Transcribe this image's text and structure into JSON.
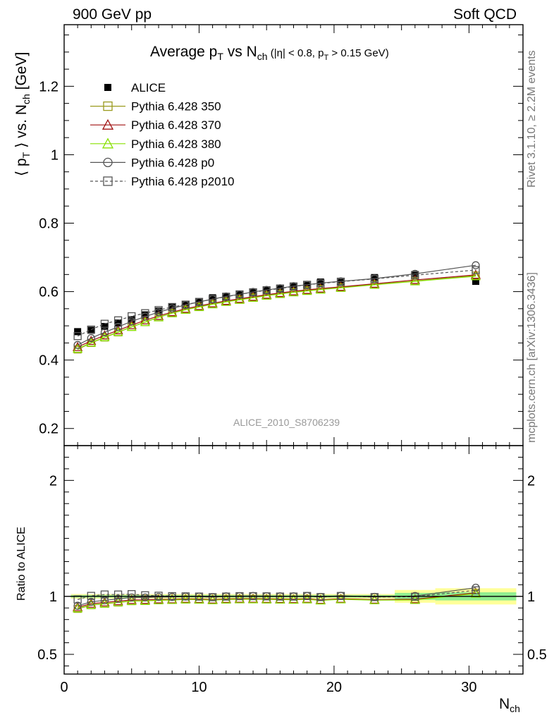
{
  "header": {
    "left": "900 GeV pp",
    "right": "Soft QCD"
  },
  "side": {
    "rivet": "Rivet 3.1.10, ≥ 2.2M events",
    "mcplots": "mcplots.cern.ch [arXiv:1306.3436]"
  },
  "chart_data": [
    {
      "type": "scatter",
      "title_parts": {
        "a": "Average p",
        "a_sub": "T",
        "b": " vs N",
        "b_sub": "ch",
        "c": " (|η| < 0.8, p",
        "c_sub": "T",
        "d": " > 0.15 GeV)"
      },
      "ylabel_parts": {
        "a": "⟨ p",
        "a_sub": "T",
        "b": " ⟩ vs. N",
        "b_sub": "ch",
        "c": " [GeV]"
      },
      "watermark": "ALICE_2010_S8706239",
      "xlim": [
        0,
        34
      ],
      "ylim": [
        0.15,
        1.38
      ],
      "yticks": [
        "0.2",
        "0.4",
        "0.6",
        "0.8",
        "1",
        "1.2"
      ],
      "ytick_values": [
        0.2,
        0.4,
        0.6,
        0.8,
        1.0,
        1.2
      ],
      "legend_position": "top-left",
      "x": [
        1,
        2,
        3,
        4,
        5,
        6,
        7,
        8,
        9,
        10,
        11,
        12,
        13,
        14,
        15,
        16,
        17,
        18,
        19,
        20.5,
        23,
        26,
        30.5
      ],
      "series": [
        {
          "name": "ALICE",
          "color": "#000000",
          "marker": "filled-square",
          "line": "none",
          "values": [
            0.483,
            0.487,
            0.498,
            0.508,
            0.518,
            0.532,
            0.543,
            0.554,
            0.562,
            0.571,
            0.582,
            0.586,
            0.591,
            0.597,
            0.604,
            0.61,
            0.616,
            0.618,
            0.628,
            0.627,
            0.641,
            0.65,
            0.63
          ]
        },
        {
          "name": "Pythia 6.428 350",
          "color": "#9a9a1e",
          "marker": "open-square",
          "line": "solid",
          "values": [
            0.431,
            0.45,
            0.466,
            0.481,
            0.497,
            0.511,
            0.525,
            0.537,
            0.547,
            0.556,
            0.564,
            0.571,
            0.577,
            0.583,
            0.589,
            0.594,
            0.599,
            0.604,
            0.608,
            0.613,
            0.621,
            0.631,
            0.647
          ]
        },
        {
          "name": "Pythia 6.428 370",
          "color": "#a01010",
          "marker": "open-triangle",
          "line": "solid",
          "values": [
            0.438,
            0.456,
            0.472,
            0.487,
            0.502,
            0.516,
            0.529,
            0.54,
            0.55,
            0.558,
            0.566,
            0.573,
            0.579,
            0.585,
            0.591,
            0.596,
            0.601,
            0.605,
            0.609,
            0.614,
            0.623,
            0.634,
            0.649
          ]
        },
        {
          "name": "Pythia 6.428 380",
          "color": "#88e000",
          "marker": "open-triangle",
          "line": "solid",
          "values": [
            0.433,
            0.451,
            0.467,
            0.482,
            0.497,
            0.511,
            0.525,
            0.537,
            0.547,
            0.555,
            0.563,
            0.57,
            0.576,
            0.582,
            0.588,
            0.593,
            0.598,
            0.602,
            0.606,
            0.611,
            0.62,
            0.63,
            0.645
          ]
        },
        {
          "name": "Pythia 6.428 p0",
          "color": "#555555",
          "marker": "open-circle",
          "line": "solid",
          "values": [
            0.444,
            0.464,
            0.481,
            0.497,
            0.513,
            0.527,
            0.54,
            0.551,
            0.561,
            0.57,
            0.578,
            0.586,
            0.592,
            0.599,
            0.605,
            0.61,
            0.616,
            0.62,
            0.625,
            0.63,
            0.638,
            0.652,
            0.677
          ]
        },
        {
          "name": "Pythia 6.428 p2010",
          "color": "#555555",
          "marker": "open-square",
          "line": "dashed",
          "values": [
            0.47,
            0.489,
            0.506,
            0.516,
            0.528,
            0.537,
            0.546,
            0.555,
            0.562,
            0.57,
            0.578,
            0.585,
            0.592,
            0.598,
            0.604,
            0.609,
            0.615,
            0.62,
            0.624,
            0.629,
            0.637,
            0.648,
            0.663
          ]
        }
      ]
    },
    {
      "type": "line",
      "ylabel": "Ratio to ALICE",
      "xlabel_parts": {
        "a": "N",
        "a_sub": "ch"
      },
      "xlim": [
        0,
        34
      ],
      "ylim": [
        0.33,
        2.3
      ],
      "xticks": [
        "0",
        "10",
        "20",
        "30"
      ],
      "xtick_values": [
        0,
        10,
        20,
        30
      ],
      "yticks": [
        "0.5",
        "1",
        "2"
      ],
      "ytick_values": [
        0.5,
        1.0,
        2.0
      ],
      "bands": [
        {
          "xmin": 0.5,
          "xmax": 24.5,
          "inner": 0.01,
          "outer": 0.02
        },
        {
          "xmin": 24.5,
          "xmax": 27.5,
          "inner": 0.03,
          "outer": 0.055
        },
        {
          "xmin": 27.5,
          "xmax": 33.5,
          "inner": 0.035,
          "outer": 0.07
        }
      ],
      "band_colors": {
        "inner": "#90ee90",
        "outer": "#ffff99"
      }
    }
  ]
}
